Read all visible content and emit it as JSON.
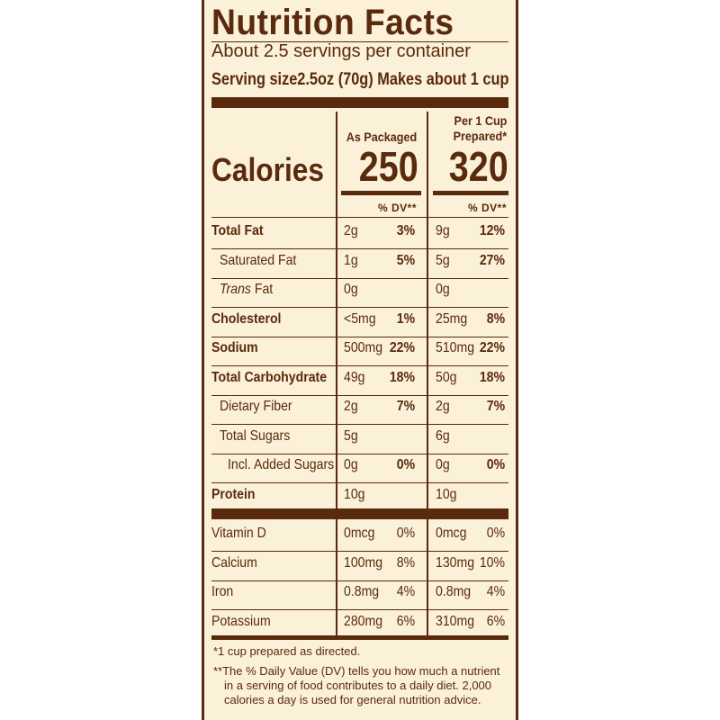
{
  "title": "Nutrition Facts",
  "servings_per_container": "About 2.5 servings per container",
  "serving_size_label": "Serving size",
  "serving_size_value": "2.5oz (70g) Makes about 1 cup",
  "columns": {
    "packaged_header": "As Packaged",
    "prepared_header_line1": "Per 1 Cup",
    "prepared_header_line2": "Prepared*"
  },
  "calories": {
    "label": "Calories",
    "packaged": "250",
    "prepared": "320"
  },
  "dv_header": "% DV**",
  "nutrients": [
    {
      "name": "Total Fat",
      "bold": true,
      "indent": 0,
      "pk_amt": "2g",
      "pk_dv": "3%",
      "pr_amt": "9g",
      "pr_dv": "12%"
    },
    {
      "name": "Saturated Fat",
      "bold": false,
      "indent": 1,
      "pk_amt": "1g",
      "pk_dv": "5%",
      "pr_amt": "5g",
      "pr_dv": "27%"
    },
    {
      "name_italic": "Trans",
      "name": " Fat",
      "bold": false,
      "indent": 1,
      "pk_amt": "0g",
      "pk_dv": "",
      "pr_amt": "0g",
      "pr_dv": ""
    },
    {
      "name": "Cholesterol",
      "bold": true,
      "indent": 0,
      "pk_amt": "<5mg",
      "pk_dv": "1%",
      "pr_amt": "25mg",
      "pr_dv": "8%"
    },
    {
      "name": "Sodium",
      "bold": true,
      "indent": 0,
      "pk_amt": "500mg",
      "pk_dv": "22%",
      "pr_amt": "510mg",
      "pr_dv": "22%"
    },
    {
      "name": "Total Carbohydrate",
      "bold": true,
      "indent": 0,
      "pk_amt": "49g",
      "pk_dv": "18%",
      "pr_amt": "50g",
      "pr_dv": "18%"
    },
    {
      "name": "Dietary Fiber",
      "bold": false,
      "indent": 1,
      "pk_amt": "2g",
      "pk_dv": "7%",
      "pr_amt": "2g",
      "pr_dv": "7%"
    },
    {
      "name": "Total Sugars",
      "bold": false,
      "indent": 1,
      "pk_amt": "5g",
      "pk_dv": "",
      "pr_amt": "6g",
      "pr_dv": ""
    },
    {
      "name": "Incl. Added Sugars",
      "bold": false,
      "indent": 2,
      "pk_amt": "0g",
      "pk_dv": "0%",
      "pr_amt": "0g",
      "pr_dv": "0%"
    },
    {
      "name": "Protein",
      "bold": true,
      "indent": 0,
      "pk_amt": "10g",
      "pk_dv": "",
      "pr_amt": "10g",
      "pr_dv": ""
    }
  ],
  "vitamins": [
    {
      "name": "Vitamin D",
      "pk_amt": "0mcg",
      "pk_dv": "0%",
      "pr_amt": "0mcg",
      "pr_dv": "0%"
    },
    {
      "name": "Calcium",
      "pk_amt": "100mg",
      "pk_dv": "8%",
      "pr_amt": "130mg",
      "pr_dv": "10%"
    },
    {
      "name": "Iron",
      "pk_amt": "0.8mg",
      "pk_dv": "4%",
      "pr_amt": "0.8mg",
      "pr_dv": "4%"
    },
    {
      "name": "Potassium",
      "pk_amt": "280mg",
      "pk_dv": "6%",
      "pr_amt": "310mg",
      "pr_dv": "6%"
    }
  ],
  "footnote1": "*1 cup prepared as directed.",
  "footnote2_line1": "**The % Daily Value (DV) tells you how much a nutrient",
  "footnote2_line2": "in a serving of food contributes to a daily diet. 2,000",
  "footnote2_line3": "calories a day is used for general nutrition advice.",
  "colors": {
    "ink": "#5a2a0e",
    "paper": "#fbf0d8"
  }
}
